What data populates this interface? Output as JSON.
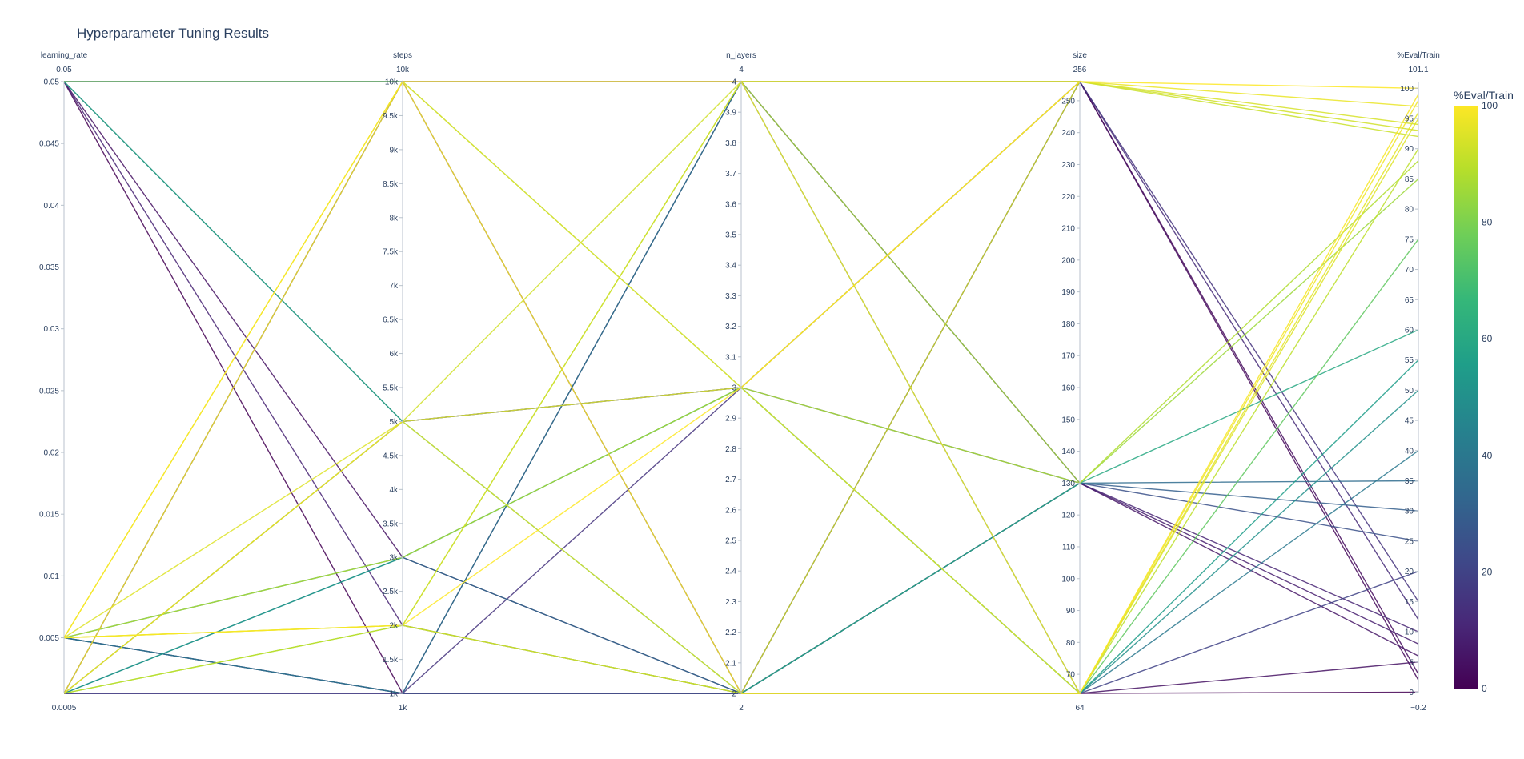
{
  "chart_data": {
    "type": "parcoords",
    "title": "Hyperparameter Tuning Results",
    "dimensions": [
      {
        "label": "learning_rate",
        "range": [
          0.0005,
          0.05
        ],
        "top_label": "0.05",
        "bottom_label": "0.0005",
        "ticks": [
          {
            "v": 0.05,
            "t": "0.05"
          },
          {
            "v": 0.045,
            "t": "0.045"
          },
          {
            "v": 0.04,
            "t": "0.04"
          },
          {
            "v": 0.035,
            "t": "0.035"
          },
          {
            "v": 0.03,
            "t": "0.03"
          },
          {
            "v": 0.025,
            "t": "0.025"
          },
          {
            "v": 0.02,
            "t": "0.02"
          },
          {
            "v": 0.015,
            "t": "0.015"
          },
          {
            "v": 0.01,
            "t": "0.01"
          },
          {
            "v": 0.005,
            "t": "0.005"
          }
        ]
      },
      {
        "label": "steps",
        "range": [
          1000,
          10000
        ],
        "top_label": "10k",
        "bottom_label": "1k",
        "ticks": [
          {
            "v": 10000,
            "t": "10k"
          },
          {
            "v": 9500,
            "t": "9.5k"
          },
          {
            "v": 9000,
            "t": "9k"
          },
          {
            "v": 8500,
            "t": "8.5k"
          },
          {
            "v": 8000,
            "t": "8k"
          },
          {
            "v": 7500,
            "t": "7.5k"
          },
          {
            "v": 7000,
            "t": "7k"
          },
          {
            "v": 6500,
            "t": "6.5k"
          },
          {
            "v": 6000,
            "t": "6k"
          },
          {
            "v": 5500,
            "t": "5.5k"
          },
          {
            "v": 5000,
            "t": "5k"
          },
          {
            "v": 4500,
            "t": "4.5k"
          },
          {
            "v": 4000,
            "t": "4k"
          },
          {
            "v": 3500,
            "t": "3.5k"
          },
          {
            "v": 3000,
            "t": "3k"
          },
          {
            "v": 2500,
            "t": "2.5k"
          },
          {
            "v": 2000,
            "t": "2k"
          },
          {
            "v": 1500,
            "t": "1.5k"
          },
          {
            "v": 1000,
            "t": "1k"
          }
        ]
      },
      {
        "label": "n_layers",
        "range": [
          2,
          4
        ],
        "top_label": "4",
        "bottom_label": "2",
        "ticks": [
          {
            "v": 4,
            "t": "4"
          },
          {
            "v": 3.9,
            "t": "3.9"
          },
          {
            "v": 3.8,
            "t": "3.8"
          },
          {
            "v": 3.7,
            "t": "3.7"
          },
          {
            "v": 3.6,
            "t": "3.6"
          },
          {
            "v": 3.5,
            "t": "3.5"
          },
          {
            "v": 3.4,
            "t": "3.4"
          },
          {
            "v": 3.3,
            "t": "3.3"
          },
          {
            "v": 3.2,
            "t": "3.2"
          },
          {
            "v": 3.1,
            "t": "3.1"
          },
          {
            "v": 3,
            "t": "3"
          },
          {
            "v": 2.9,
            "t": "2.9"
          },
          {
            "v": 2.8,
            "t": "2.8"
          },
          {
            "v": 2.7,
            "t": "2.7"
          },
          {
            "v": 2.6,
            "t": "2.6"
          },
          {
            "v": 2.5,
            "t": "2.5"
          },
          {
            "v": 2.4,
            "t": "2.4"
          },
          {
            "v": 2.3,
            "t": "2.3"
          },
          {
            "v": 2.2,
            "t": "2.2"
          },
          {
            "v": 2.1,
            "t": "2.1"
          },
          {
            "v": 2,
            "t": "2"
          }
        ]
      },
      {
        "label": "size",
        "range": [
          64,
          256
        ],
        "top_label": "256",
        "bottom_label": "64",
        "ticks": [
          {
            "v": 250,
            "t": "250"
          },
          {
            "v": 240,
            "t": "240"
          },
          {
            "v": 230,
            "t": "230"
          },
          {
            "v": 220,
            "t": "220"
          },
          {
            "v": 210,
            "t": "210"
          },
          {
            "v": 200,
            "t": "200"
          },
          {
            "v": 190,
            "t": "190"
          },
          {
            "v": 180,
            "t": "180"
          },
          {
            "v": 170,
            "t": "170"
          },
          {
            "v": 160,
            "t": "160"
          },
          {
            "v": 150,
            "t": "150"
          },
          {
            "v": 140,
            "t": "140"
          },
          {
            "v": 130,
            "t": "130"
          },
          {
            "v": 120,
            "t": "120"
          },
          {
            "v": 110,
            "t": "110"
          },
          {
            "v": 100,
            "t": "100"
          },
          {
            "v": 90,
            "t": "90"
          },
          {
            "v": 80,
            "t": "80"
          },
          {
            "v": 70,
            "t": "70"
          }
        ]
      },
      {
        "label": "%Eval/Train",
        "range": [
          -0.2,
          101.1
        ],
        "top_label": "101.1",
        "bottom_label": "−0.2",
        "ticks": [
          {
            "v": 100,
            "t": "100"
          },
          {
            "v": 95,
            "t": "95"
          },
          {
            "v": 90,
            "t": "90"
          },
          {
            "v": 85,
            "t": "85"
          },
          {
            "v": 80,
            "t": "80"
          },
          {
            "v": 75,
            "t": "75"
          },
          {
            "v": 70,
            "t": "70"
          },
          {
            "v": 65,
            "t": "65"
          },
          {
            "v": 60,
            "t": "60"
          },
          {
            "v": 55,
            "t": "55"
          },
          {
            "v": 50,
            "t": "50"
          },
          {
            "v": 45,
            "t": "45"
          },
          {
            "v": 40,
            "t": "40"
          },
          {
            "v": 35,
            "t": "35"
          },
          {
            "v": 30,
            "t": "30"
          },
          {
            "v": 25,
            "t": "25"
          },
          {
            "v": 20,
            "t": "20"
          },
          {
            "v": 15,
            "t": "15"
          },
          {
            "v": 10,
            "t": "10"
          },
          {
            "v": 5,
            "t": "5"
          },
          {
            "v": 0,
            "t": "0"
          }
        ]
      }
    ],
    "colorbar": {
      "title": "%Eval/Train",
      "range": [
        0,
        100
      ],
      "ticks": [
        {
          "v": 100,
          "t": "100"
        },
        {
          "v": 80,
          "t": "80"
        },
        {
          "v": 60,
          "t": "60"
        },
        {
          "v": 40,
          "t": "40"
        },
        {
          "v": 20,
          "t": "20"
        },
        {
          "v": 0,
          "t": "0"
        }
      ],
      "colorscale": [
        "#440154",
        "#482878",
        "#3e4989",
        "#31688e",
        "#26828e",
        "#1f9e89",
        "#35b779",
        "#6ece58",
        "#b5de2b",
        "#fde725"
      ]
    },
    "lines": [
      [
        0.05,
        10000,
        4,
        256,
        2
      ],
      [
        0.05,
        5000,
        3,
        130,
        30
      ],
      [
        0.05,
        3000,
        2,
        64,
        5
      ],
      [
        0.05,
        1000,
        2,
        64,
        0
      ],
      [
        0.05,
        2000,
        2,
        130,
        10
      ],
      [
        0.005,
        10000,
        3,
        256,
        97
      ],
      [
        0.005,
        5000,
        2,
        64,
        95
      ],
      [
        0.005,
        3000,
        3,
        130,
        88
      ],
      [
        0.005,
        2000,
        2,
        256,
        92
      ],
      [
        0.005,
        1000,
        2,
        130,
        25
      ],
      [
        0.0005,
        10000,
        4,
        64,
        98
      ],
      [
        0.0005,
        5000,
        4,
        256,
        93
      ],
      [
        0.0005,
        2000,
        2,
        64,
        90
      ],
      [
        0.0005,
        2000,
        4,
        130,
        85
      ],
      [
        0.0005,
        1000,
        2,
        64,
        20
      ],
      [
        0.005,
        10000,
        2,
        64,
        99
      ],
      [
        0.0005,
        5000,
        3,
        64,
        96
      ],
      [
        0.005,
        2000,
        4,
        256,
        94
      ],
      [
        0.0005,
        1000,
        4,
        130,
        6
      ],
      [
        0.0005,
        1000,
        3,
        256,
        15
      ],
      [
        0.005,
        3000,
        3,
        64,
        50
      ],
      [
        0.0005,
        3000,
        2,
        130,
        35
      ],
      [
        0.05,
        10000,
        3,
        64,
        75
      ],
      [
        0.05,
        5000,
        2,
        130,
        60
      ],
      [
        0.005,
        1000,
        4,
        64,
        40
      ],
      [
        0.005,
        2000,
        3,
        256,
        100
      ],
      [
        0.0005,
        5000,
        3,
        256,
        12
      ],
      [
        0.0005,
        3000,
        3,
        64,
        55
      ],
      [
        0.005,
        1000,
        2,
        256,
        3
      ],
      [
        0.0005,
        10000,
        2,
        130,
        8
      ]
    ]
  }
}
